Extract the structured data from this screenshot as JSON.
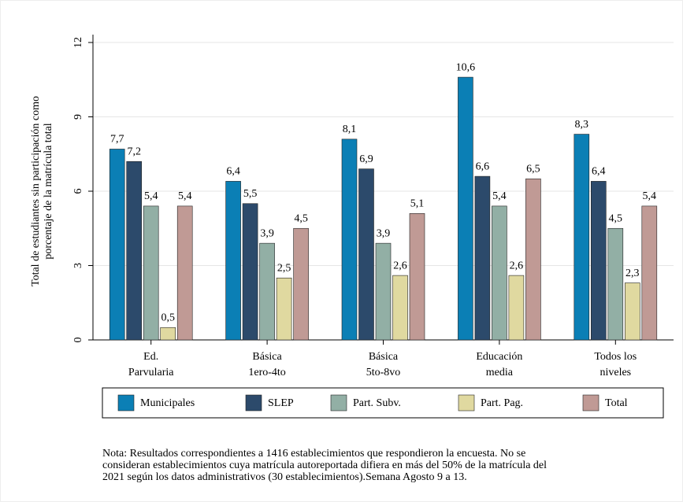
{
  "chart_data": {
    "type": "bar",
    "ylabel": [
      "Total de estudiantes sin participación como",
      "porcentaje de la matrícula total"
    ],
    "categories": [
      [
        "Ed.",
        "Parvularia"
      ],
      [
        "Básica",
        "1ero-4to"
      ],
      [
        "Básica",
        "5to-8vo"
      ],
      [
        "Educación",
        "media"
      ],
      [
        "Todos los",
        "niveles"
      ]
    ],
    "series": [
      {
        "name": "Municipales",
        "color": "#0b7fb5",
        "values": [
          7.7,
          6.4,
          8.1,
          10.6,
          8.3
        ],
        "value_labels": [
          "7,7",
          "6,4",
          "8,1",
          "10,6",
          "8,3"
        ]
      },
      {
        "name": "SLEP",
        "color": "#2c4a6b",
        "values": [
          7.2,
          5.5,
          6.9,
          6.6,
          6.4
        ],
        "value_labels": [
          "7,2",
          "5,5",
          "6,9",
          "6,6",
          "6,4"
        ]
      },
      {
        "name": "Part. Subv.",
        "color": "#92afa5",
        "values": [
          5.4,
          3.9,
          3.9,
          5.4,
          4.5
        ],
        "value_labels": [
          "5,4",
          "3,9",
          "3,9",
          "5,4",
          "4,5"
        ]
      },
      {
        "name": "Part. Pag.",
        "color": "#e0d9a0",
        "values": [
          0.5,
          2.5,
          2.6,
          2.6,
          2.3
        ],
        "value_labels": [
          "0,5",
          "2,5",
          "2,6",
          "2,6",
          "2,3"
        ]
      },
      {
        "name": "Total",
        "color": "#c09a95",
        "values": [
          5.4,
          4.5,
          5.1,
          6.5,
          5.4
        ],
        "value_labels": [
          "5,4",
          "4,5",
          "5,1",
          "6,5",
          "5,4"
        ]
      }
    ],
    "ylim": [
      0,
      12
    ],
    "yticks": [
      0,
      3,
      6,
      9,
      12
    ],
    "grid": true,
    "legend": "bottom",
    "note": [
      "Nota: Resultados correspondientes a 1416 establecimientos que respondieron la encuesta. No se",
      "consideran establecimientos cuya matrícula autoreportada difiera en más del 50% de la matrícula del",
      "2021 según los datos administrativos (30 establecimientos).Semana Agosto 9 a 13."
    ]
  }
}
